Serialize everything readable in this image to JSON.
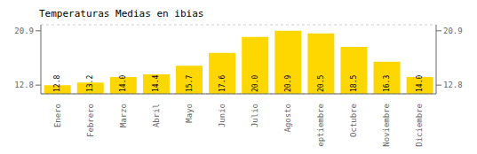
{
  "chart_data": {
    "type": "bar",
    "title": "Temperaturas Medias en ibias",
    "categories": [
      "Enero",
      "Febrero",
      "Marzo",
      "Abril",
      "Mayo",
      "Junio",
      "Julio",
      "Agosto",
      "Septiembre",
      "Octubre",
      "Noviembre",
      "Diciembre"
    ],
    "values": [
      12.8,
      13.2,
      14.0,
      14.4,
      15.7,
      17.6,
      20.0,
      20.9,
      20.5,
      18.5,
      16.3,
      14.0
    ],
    "value_labels": [
      "12.8",
      "13.2",
      "14.0",
      "14.4",
      "15.7",
      "17.6",
      "20.0",
      "20.9",
      "20.5",
      "18.5",
      "16.3",
      "14.0"
    ],
    "data_labels": true,
    "color": "#FFD700",
    "ylim": [
      11.5,
      21.8
    ],
    "yticks": [
      12.8,
      20.9
    ],
    "grid": true
  }
}
